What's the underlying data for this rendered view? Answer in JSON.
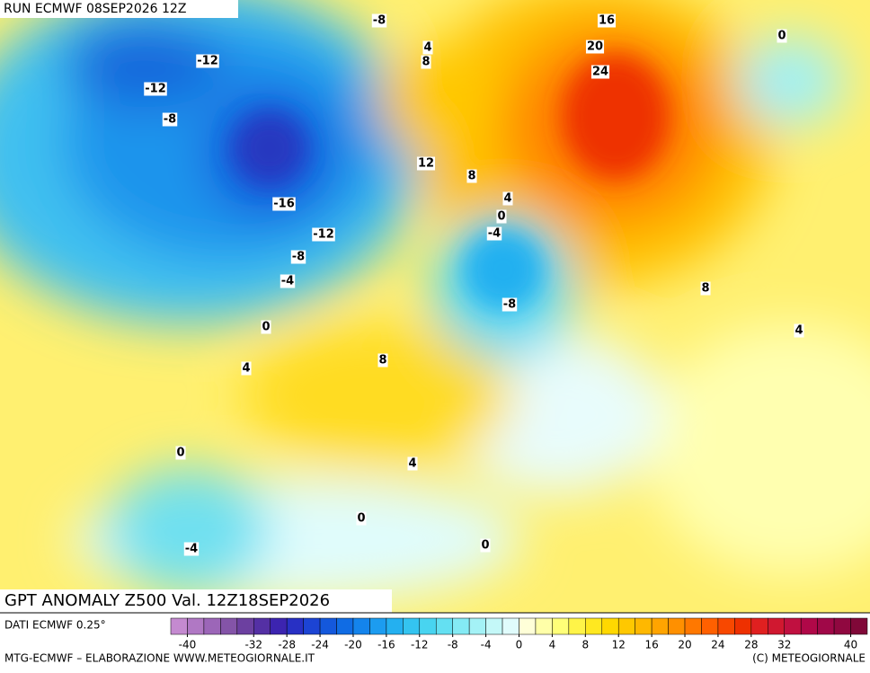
{
  "header": {
    "run": "RUN ECMWF 08SEP2026 12Z"
  },
  "map": {
    "title": "GPT ANOMALY Z500 Val. 12Z18SEP2026",
    "contour_labels": [
      -8,
      16,
      0,
      4,
      8,
      20,
      24,
      -12,
      -12,
      -8,
      12,
      8,
      4,
      0,
      -4,
      -16,
      -12,
      -8,
      -4,
      -8,
      8,
      4,
      0,
      4,
      8,
      0,
      4,
      0,
      0,
      -4
    ]
  },
  "colorbar": {
    "source": "DATI ECMWF 0.25°",
    "range": [
      -42,
      42
    ],
    "colors": [
      "#c48ad0",
      "#b078c4",
      "#9c66b8",
      "#8454a8",
      "#6c40a0",
      "#5430a4",
      "#3c24b0",
      "#2830c4",
      "#1c44d4",
      "#1458dc",
      "#106ce4",
      "#1484ec",
      "#1c9cf0",
      "#24b0f0",
      "#34c4f0",
      "#48d4f0",
      "#64e0f2",
      "#84eaf4",
      "#a4f2f6",
      "#c4f8f8",
      "#e0fcfc",
      "#ffffd8",
      "#ffffa8",
      "#ffff78",
      "#fff448",
      "#ffe820",
      "#ffd800",
      "#ffc800",
      "#ffb800",
      "#ffa400",
      "#ff9000",
      "#ff7800",
      "#ff6000",
      "#f84800",
      "#ee3000",
      "#e02020",
      "#d01830",
      "#c01040",
      "#b00848",
      "#a00848",
      "#900840",
      "#800838"
    ],
    "ticks": [
      -40,
      -32,
      -28,
      -24,
      -20,
      -16,
      -12,
      -8,
      -4,
      0,
      4,
      8,
      12,
      16,
      20,
      24,
      28,
      32,
      40
    ]
  },
  "footer": {
    "left": "MTG-ECMWF – ELABORAZIONE WWW.METEOGIORNALE.IT",
    "right": "(C) METEOGIORNALE"
  }
}
